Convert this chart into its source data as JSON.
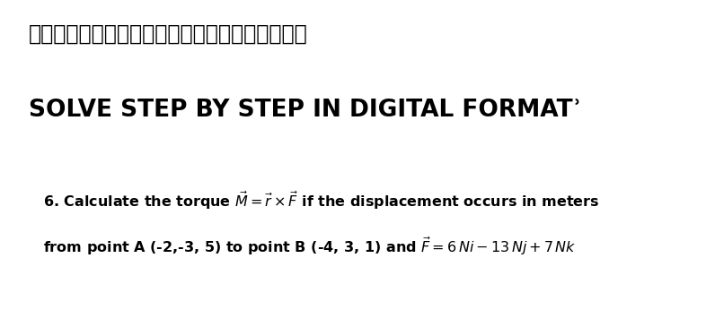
{
  "bg_color": "#ffffff",
  "japanese_text": "デジタル形式で段階的に解決　　ありがとう！！",
  "solve_text": "SOLVE STEP BY STEP IN DIGITAL FORMATʾ",
  "prob_line1_prefix": "6. Calculate the torque ",
  "prob_line1_math": "$\\vec{M}=\\vec{r}\\times\\vec{F}$",
  "prob_line1_suffix": " if the displacement occurs in meters",
  "prob_line2_prefix": "from point ",
  "prob_line2_A": "A",
  "prob_line2_mid": " (-2,-3, 5) to point ",
  "prob_line2_B": "B",
  "prob_line2_coords": " (-4, 3, 1) and ",
  "prob_line2_math": "$\\vec{F}=6\\,Ni-13\\,Nj+7\\,Nk$",
  "fig_width": 7.96,
  "fig_height": 3.65,
  "fig_dpi": 100
}
